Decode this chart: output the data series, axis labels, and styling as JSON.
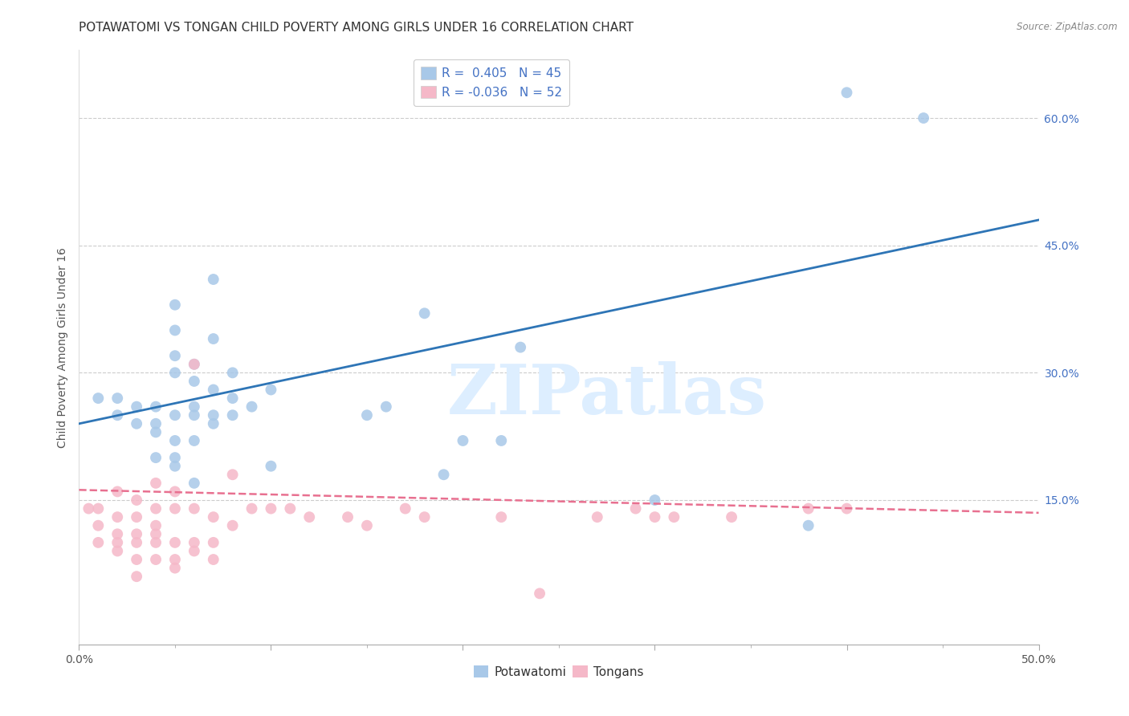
{
  "title": "POTAWATOMI VS TONGAN CHILD POVERTY AMONG GIRLS UNDER 16 CORRELATION CHART",
  "source": "Source: ZipAtlas.com",
  "ylabel": "Child Poverty Among Girls Under 16",
  "xlim": [
    0.0,
    0.5
  ],
  "ylim": [
    -0.02,
    0.68
  ],
  "blue_R": 0.405,
  "blue_N": 45,
  "pink_R": -0.036,
  "pink_N": 52,
  "blue_color": "#a8c8e8",
  "pink_color": "#f5b8c8",
  "blue_line_color": "#2e75b6",
  "pink_line_color": "#e87090",
  "watermark": "ZIPatlas",
  "watermark_color": "#ddeeff",
  "legend_label_blue": "Potawatomi",
  "legend_label_pink": "Tongans",
  "blue_points_x": [
    0.01,
    0.02,
    0.02,
    0.03,
    0.03,
    0.04,
    0.04,
    0.04,
    0.04,
    0.05,
    0.05,
    0.05,
    0.05,
    0.05,
    0.05,
    0.05,
    0.05,
    0.06,
    0.06,
    0.06,
    0.06,
    0.06,
    0.06,
    0.07,
    0.07,
    0.07,
    0.07,
    0.07,
    0.08,
    0.08,
    0.08,
    0.09,
    0.1,
    0.1,
    0.15,
    0.16,
    0.18,
    0.19,
    0.2,
    0.22,
    0.23,
    0.3,
    0.38,
    0.4,
    0.44
  ],
  "blue_points_y": [
    0.27,
    0.25,
    0.27,
    0.24,
    0.26,
    0.2,
    0.23,
    0.24,
    0.26,
    0.19,
    0.2,
    0.22,
    0.25,
    0.3,
    0.32,
    0.35,
    0.38,
    0.17,
    0.22,
    0.25,
    0.26,
    0.29,
    0.31,
    0.24,
    0.25,
    0.28,
    0.34,
    0.41,
    0.25,
    0.27,
    0.3,
    0.26,
    0.19,
    0.28,
    0.25,
    0.26,
    0.37,
    0.18,
    0.22,
    0.22,
    0.33,
    0.15,
    0.12,
    0.63,
    0.6
  ],
  "pink_points_x": [
    0.005,
    0.01,
    0.01,
    0.01,
    0.02,
    0.02,
    0.02,
    0.02,
    0.02,
    0.03,
    0.03,
    0.03,
    0.03,
    0.03,
    0.03,
    0.04,
    0.04,
    0.04,
    0.04,
    0.04,
    0.04,
    0.05,
    0.05,
    0.05,
    0.05,
    0.05,
    0.06,
    0.06,
    0.06,
    0.06,
    0.07,
    0.07,
    0.07,
    0.08,
    0.08,
    0.09,
    0.1,
    0.11,
    0.12,
    0.14,
    0.15,
    0.17,
    0.18,
    0.22,
    0.24,
    0.27,
    0.29,
    0.3,
    0.31,
    0.34,
    0.38,
    0.4
  ],
  "pink_points_y": [
    0.14,
    0.1,
    0.12,
    0.14,
    0.09,
    0.1,
    0.11,
    0.13,
    0.16,
    0.06,
    0.08,
    0.1,
    0.11,
    0.13,
    0.15,
    0.08,
    0.1,
    0.11,
    0.12,
    0.14,
    0.17,
    0.07,
    0.08,
    0.1,
    0.14,
    0.16,
    0.09,
    0.1,
    0.14,
    0.31,
    0.08,
    0.1,
    0.13,
    0.12,
    0.18,
    0.14,
    0.14,
    0.14,
    0.13,
    0.13,
    0.12,
    0.14,
    0.13,
    0.13,
    0.04,
    0.13,
    0.14,
    0.13,
    0.13,
    0.13,
    0.14,
    0.14
  ],
  "blue_line_y_start": 0.24,
  "blue_line_y_end": 0.48,
  "pink_line_y_start": 0.162,
  "pink_line_y_end": 0.135,
  "title_fontsize": 11,
  "axis_label_fontsize": 10,
  "tick_fontsize": 10,
  "legend_fontsize": 11,
  "marker_size": 100
}
